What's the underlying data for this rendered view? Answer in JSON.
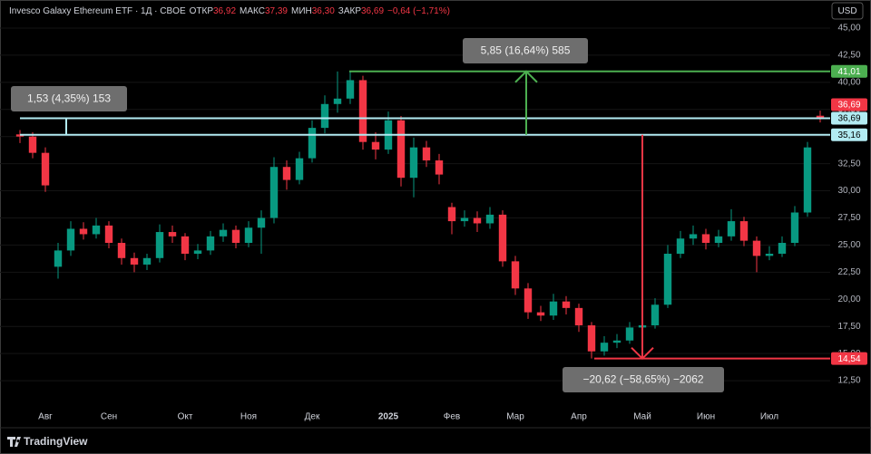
{
  "chart_data": {
    "type": "candlestick",
    "title": "Invesco Galaxy Ethereum ETF · 1Д · CBOE",
    "stats": [
      {
        "label": "ОТКР",
        "value": "36,92"
      },
      {
        "label": "МАКС",
        "value": "37,39"
      },
      {
        "label": "МИН",
        "value": "36,30"
      },
      {
        "label": "ЗАКР",
        "value": "36,69"
      }
    ],
    "change": "−0,64 (−1,71%)",
    "currency": "USD",
    "brand": "TradingView",
    "categories": [
      null,
      null,
      "Авг",
      null,
      null,
      null,
      null,
      "Сен",
      null,
      null,
      null,
      null,
      null,
      "Окт",
      null,
      null,
      null,
      null,
      "Ноя",
      null,
      null,
      null,
      null,
      "Дек",
      null,
      null,
      null,
      null,
      null,
      "2025",
      null,
      null,
      null,
      null,
      "Фев",
      null,
      null,
      null,
      null,
      "Мар",
      null,
      null,
      null,
      null,
      "Апр",
      null,
      null,
      null,
      null,
      "Май",
      null,
      null,
      null,
      null,
      "Июн",
      null,
      null,
      null,
      null,
      "Июл",
      null,
      null,
      null,
      null
    ],
    "open": [
      35.2,
      35.0,
      33.5,
      23.0,
      24.5,
      26.5,
      26.0,
      26.8,
      25.2,
      23.8,
      23.2,
      23.8,
      26.2,
      25.8,
      24.2,
      24.5,
      25.8,
      26.4,
      25.2,
      26.6,
      27.5,
      32.2,
      31.0,
      33.0,
      35.8,
      38.0,
      38.5,
      40.2,
      34.5,
      33.8,
      36.5,
      31.2,
      34.0,
      32.8,
      28.5,
      27.2,
      27.5,
      27.0,
      27.8,
      23.5,
      21.0,
      18.8,
      18.5,
      19.8,
      19.2,
      17.6,
      15.2,
      16.0,
      16.2,
      17.4,
      17.6,
      19.5,
      24.2,
      25.6,
      26.0,
      25.2,
      25.8,
      27.2,
      25.4,
      24.0,
      24.2,
      25.2,
      28.0,
      36.92
    ],
    "high": [
      35.6,
      35.4,
      34.0,
      25.2,
      27.2,
      27.1,
      27.5,
      27.2,
      25.6,
      24.3,
      24.2,
      26.9,
      26.8,
      26.1,
      25.1,
      26.3,
      27.0,
      26.8,
      27.2,
      28.2,
      33.1,
      32.8,
      33.6,
      36.5,
      38.8,
      41.0,
      41.01,
      40.6,
      35.4,
      37.3,
      36.9,
      34.9,
      34.6,
      33.4,
      28.9,
      28.2,
      28.1,
      28.5,
      28.2,
      24.0,
      21.5,
      19.4,
      20.5,
      20.3,
      19.6,
      17.9,
      16.6,
      16.8,
      17.9,
      18.2,
      20.1,
      25.0,
      26.3,
      26.8,
      26.5,
      26.4,
      28.3,
      27.6,
      25.8,
      24.9,
      25.8,
      28.6,
      34.5,
      37.39
    ],
    "low": [
      34.4,
      33.0,
      29.9,
      21.9,
      24.0,
      25.5,
      25.6,
      24.7,
      23.2,
      22.5,
      22.7,
      23.4,
      25.2,
      23.6,
      23.7,
      24.1,
      25.3,
      24.7,
      24.8,
      24.2,
      27.0,
      30.1,
      30.6,
      32.6,
      35.3,
      37.2,
      38.0,
      33.8,
      32.9,
      33.4,
      30.4,
      29.4,
      32.2,
      30.6,
      26.0,
      26.7,
      26.2,
      26.5,
      23.0,
      20.4,
      18.2,
      18.0,
      18.1,
      18.6,
      17.0,
      14.54,
      14.8,
      15.5,
      15.9,
      17.0,
      17.3,
      19.2,
      23.8,
      25.0,
      24.6,
      24.8,
      25.4,
      24.9,
      22.5,
      23.6,
      23.9,
      24.9,
      27.6,
      36.3
    ],
    "close": [
      35.0,
      33.5,
      30.5,
      24.5,
      26.5,
      26.0,
      26.8,
      25.2,
      23.8,
      23.2,
      23.8,
      26.2,
      25.8,
      24.2,
      24.5,
      25.8,
      26.4,
      25.2,
      26.6,
      27.5,
      32.2,
      31.0,
      33.0,
      35.8,
      38.0,
      38.5,
      40.2,
      34.5,
      33.8,
      36.5,
      31.2,
      34.0,
      32.8,
      31.5,
      27.2,
      27.5,
      27.0,
      27.8,
      23.5,
      21.0,
      18.8,
      18.5,
      19.8,
      19.2,
      17.6,
      15.2,
      16.0,
      16.2,
      17.4,
      17.6,
      19.5,
      24.2,
      25.6,
      26.0,
      25.2,
      25.8,
      27.2,
      25.4,
      24.0,
      24.2,
      25.2,
      28.0,
      34.0,
      36.69
    ],
    "up_color": "#089981",
    "down_color": "#f23645",
    "ylim": [
      10,
      47.17
    ],
    "yticks": [
      {
        "value": 12.5,
        "label": "12,50"
      },
      {
        "value": 15,
        "label": "15,00"
      },
      {
        "value": 17.5,
        "label": "17,50"
      },
      {
        "value": 20,
        "label": "20,00"
      },
      {
        "value": 22.5,
        "label": "22,50"
      },
      {
        "value": 25,
        "label": "25,00"
      },
      {
        "value": 27.5,
        "label": "27,50"
      },
      {
        "value": 30,
        "label": "30,00"
      },
      {
        "value": 32.5,
        "label": "32,50"
      },
      {
        "value": 35,
        "label": "35,00"
      },
      {
        "value": 37.5,
        "label": "37,50"
      },
      {
        "value": 40,
        "label": "40,00"
      },
      {
        "value": 42.5,
        "label": "42,50"
      },
      {
        "value": 45,
        "label": "45,00"
      }
    ],
    "grid": true,
    "hlines": [
      {
        "value": 41.01,
        "label": "41,01",
        "color": "#4caf50"
      },
      {
        "value": 36.69,
        "label": "36,69",
        "color": "#b2ebf2"
      },
      {
        "value": 35.16,
        "label": "35,16",
        "color": "#b2ebf2"
      },
      {
        "value": 14.54,
        "label": "14,54",
        "color": "#f23645"
      }
    ],
    "last_price": {
      "value": 36.69,
      "label": "36,69",
      "color": "#f23645"
    },
    "measures": [
      {
        "text": "1,53 (4,35%) 153",
        "from": 35.16,
        "to": 36.69,
        "color": "#b2ebf2"
      },
      {
        "text": "5,85 (16,64%) 585",
        "from": 35.16,
        "to": 41.01,
        "color": "#4caf50"
      },
      {
        "text": "−20,62 (−58,65%) −2062",
        "from": 35.16,
        "to": 14.54,
        "color": "#f23645"
      }
    ]
  }
}
